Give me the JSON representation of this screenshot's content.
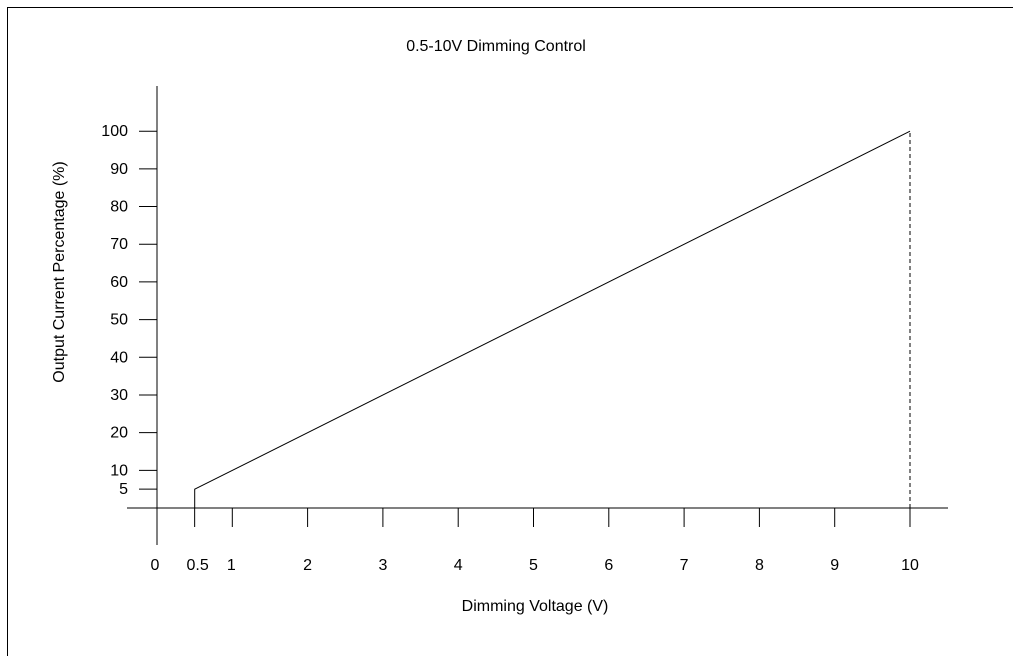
{
  "chart_data": {
    "type": "line",
    "title": "0.5-10V Dimming Control",
    "xlabel": "Dimming Voltage (V)",
    "ylabel": "Output Current Percentage (%)",
    "xlim": [
      0,
      10.5
    ],
    "ylim": [
      0,
      100
    ],
    "x_ticks": [
      0,
      0.5,
      1,
      2,
      3,
      4,
      5,
      6,
      7,
      8,
      9,
      10
    ],
    "y_ticks": [
      5,
      10,
      20,
      30,
      40,
      50,
      60,
      70,
      80,
      90,
      100
    ],
    "grid": false,
    "series": [
      {
        "x": [
          0.5,
          0.5,
          10
        ],
        "y": [
          0,
          5,
          100
        ],
        "style": "solid",
        "color": "#000000"
      },
      {
        "x": [
          10,
          10
        ],
        "y": [
          0,
          100
        ],
        "style": "dashed",
        "color": "#000000"
      }
    ]
  }
}
